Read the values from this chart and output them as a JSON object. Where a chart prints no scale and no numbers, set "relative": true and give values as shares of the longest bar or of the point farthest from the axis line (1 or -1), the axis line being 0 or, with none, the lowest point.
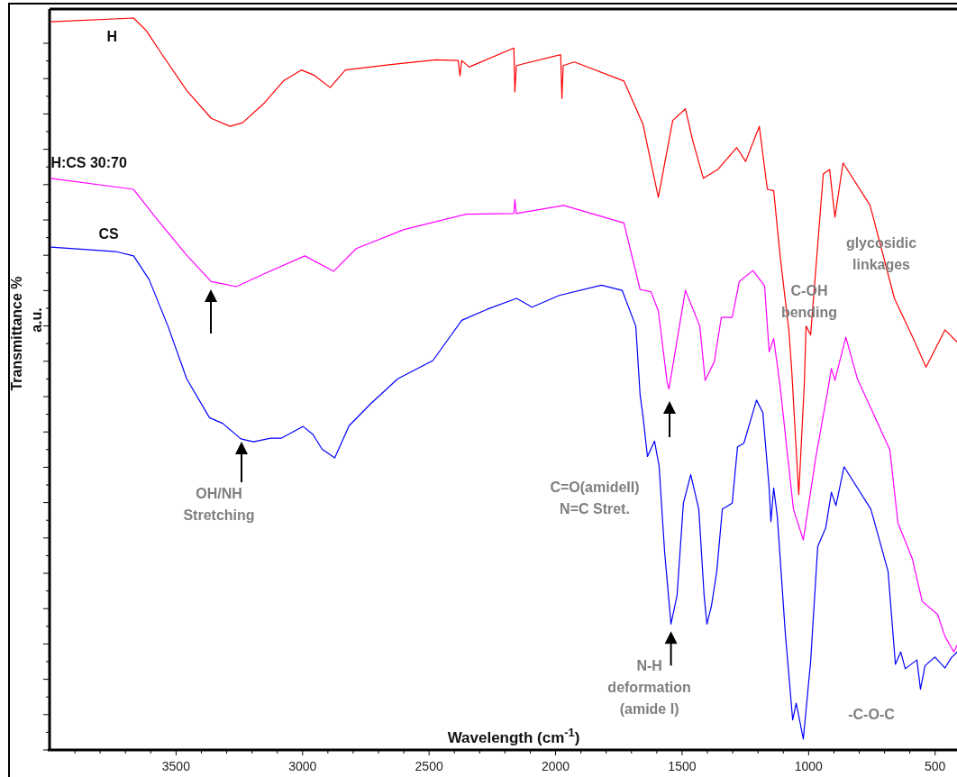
{
  "chart_data": {
    "type": "line",
    "relative": true,
    "xlabel": "Wavelength (cm$^{-1}$)",
    "ylabel": "Transmittance %\na.u.",
    "xlim": [
      4000,
      410
    ],
    "xticks": [
      {
        "value": 3900,
        "label": null
      },
      {
        "value": 3800,
        "label": null
      },
      {
        "value": 3700,
        "label": null
      },
      {
        "value": 3600,
        "label": null
      },
      3500,
      {
        "value": 3400,
        "label": null
      },
      {
        "value": 3300,
        "label": null
      },
      {
        "value": 3200,
        "label": null
      },
      {
        "value": 3100,
        "label": null
      },
      3000,
      {
        "value": 2900,
        "label": null
      },
      {
        "value": 2800,
        "label": null
      },
      {
        "value": 2700,
        "label": null
      },
      {
        "value": 2600,
        "label": null
      },
      2500,
      {
        "value": 2400,
        "label": null
      },
      {
        "value": 2300,
        "label": null
      },
      {
        "value": 2200,
        "label": null
      },
      {
        "value": 2100,
        "label": null
      },
      2000,
      {
        "value": 1900,
        "label": null
      },
      {
        "value": 1800,
        "label": null
      },
      {
        "value": 1700,
        "label": null
      },
      {
        "value": 1600,
        "label": null
      },
      1500,
      {
        "value": 1400,
        "label": null
      },
      {
        "value": 1300,
        "label": null
      },
      {
        "value": 1200,
        "label": null
      },
      {
        "value": 1100,
        "label": null
      },
      1000,
      {
        "value": 900,
        "label": null
      },
      {
        "value": 800,
        "label": null
      },
      {
        "value": 700,
        "label": null
      },
      {
        "value": 600,
        "label": null
      },
      500
    ],
    "series": [
      {
        "name": "H",
        "color": "#ff0000",
        "x": [
          3995,
          3668,
          3618,
          3557,
          3458,
          3361,
          3287,
          3237,
          3151,
          3076,
          3005,
          2955,
          2891,
          2831,
          2659,
          2474,
          2385,
          2378,
          2371,
          2342,
          2165,
          2161,
          2155,
          1980,
          1975,
          1970,
          1926,
          1730,
          1655,
          1594,
          1537,
          1487,
          1459,
          1416,
          1359,
          1284,
          1249,
          1195,
          1163,
          1138,
          1113,
          1078,
          1067,
          1039,
          1017,
          1010,
          992,
          942,
          917,
          896,
          864,
          757,
          661,
          586,
          536,
          461,
          412
        ],
        "values": [
          0.995,
          1.0,
          0.983,
          0.951,
          0.901,
          0.863,
          0.852,
          0.857,
          0.884,
          0.914,
          0.929,
          0.922,
          0.905,
          0.929,
          0.936,
          0.943,
          0.942,
          0.921,
          0.942,
          0.933,
          0.959,
          0.899,
          0.935,
          0.95,
          0.89,
          0.935,
          0.94,
          0.914,
          0.855,
          0.755,
          0.86,
          0.876,
          0.834,
          0.781,
          0.793,
          0.823,
          0.804,
          0.852,
          0.766,
          0.764,
          0.676,
          0.573,
          0.52,
          0.349,
          0.5,
          0.579,
          0.567,
          0.787,
          0.793,
          0.728,
          0.802,
          0.744,
          0.617,
          0.562,
          0.523,
          0.574,
          0.557
        ]
      },
      {
        "name": "H:CS 30:70",
        "color": "#ff00ff",
        "x": [
          3995,
          3668,
          3582,
          3458,
          3361,
          3262,
          3162,
          2991,
          2877,
          2788,
          2599,
          2353,
          2165,
          2161,
          2155,
          1968,
          1730,
          1666,
          1623,
          1594,
          1559,
          1552,
          1487,
          1430,
          1409,
          1373,
          1345,
          1302,
          1274,
          1220,
          1174,
          1156,
          1138,
          1113,
          1060,
          1021,
          971,
          925,
          910,
          896,
          853,
          807,
          679,
          647,
          590,
          551,
          490,
          461,
          426,
          412
        ],
        "values": [
          0.781,
          0.766,
          0.728,
          0.676,
          0.64,
          0.633,
          0.649,
          0.675,
          0.654,
          0.685,
          0.711,
          0.732,
          0.733,
          0.752,
          0.733,
          0.744,
          0.72,
          0.629,
          0.626,
          0.6,
          0.502,
          0.493,
          0.628,
          0.579,
          0.505,
          0.53,
          0.591,
          0.591,
          0.64,
          0.655,
          0.634,
          0.544,
          0.562,
          0.498,
          0.329,
          0.287,
          0.401,
          0.49,
          0.521,
          0.505,
          0.564,
          0.507,
          0.41,
          0.31,
          0.261,
          0.203,
          0.185,
          0.155,
          0.134,
          0.144
        ]
      },
      {
        "name": "CS",
        "color": "#0000ff",
        "x": [
          3995,
          3739,
          3668,
          3607,
          3532,
          3458,
          3368,
          3315,
          3244,
          3194,
          3126,
          3083,
          2998,
          2959,
          2923,
          2873,
          2816,
          2734,
          2624,
          2485,
          2371,
          2271,
          2154,
          2093,
          1986,
          1819,
          1737,
          1683,
          1666,
          1655,
          1637,
          1609,
          1591,
          1569,
          1544,
          1520,
          1495,
          1466,
          1434,
          1413,
          1402,
          1384,
          1363,
          1341,
          1302,
          1281,
          1256,
          1206,
          1181,
          1156,
          1149,
          1138,
          1124,
          1092,
          1063,
          1049,
          1021,
          992,
          964,
          932,
          910,
          892,
          860,
          754,
          686,
          657,
          636,
          618,
          572,
          558,
          540,
          501,
          461,
          436,
          412
        ],
        "values": [
          0.687,
          0.681,
          0.675,
          0.643,
          0.579,
          0.507,
          0.454,
          0.446,
          0.425,
          0.421,
          0.426,
          0.426,
          0.442,
          0.431,
          0.411,
          0.399,
          0.443,
          0.472,
          0.507,
          0.532,
          0.587,
          0.602,
          0.617,
          0.605,
          0.621,
          0.635,
          0.628,
          0.579,
          0.485,
          0.457,
          0.401,
          0.422,
          0.388,
          0.27,
          0.172,
          0.211,
          0.337,
          0.376,
          0.329,
          0.211,
          0.172,
          0.197,
          0.244,
          0.329,
          0.337,
          0.414,
          0.419,
          0.478,
          0.461,
          0.358,
          0.312,
          0.358,
          0.32,
          0.159,
          0.041,
          0.064,
          0.015,
          0.121,
          0.278,
          0.304,
          0.352,
          0.334,
          0.387,
          0.329,
          0.244,
          0.117,
          0.134,
          0.111,
          0.123,
          0.083,
          0.115,
          0.127,
          0.112,
          0.126,
          0.134
        ]
      }
    ],
    "annotations": [
      "OH/NH\nStretching",
      "C=O(amideII)\nN=C Stret.",
      {
        "text": "N-H\ndeformation\n(amide I)",
        "x": 1544,
        "y": 0.172
      },
      "-C-O-C",
      "C-OH\nbending",
      "glycosidic\nlinkages"
    ]
  }
}
